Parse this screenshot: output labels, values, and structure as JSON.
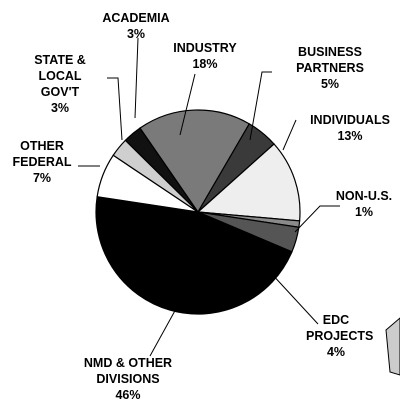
{
  "chart_data": {
    "type": "pie",
    "categories": [
      "ACADEMIA",
      "INDUSTRY",
      "BUSINESS PARTNERS",
      "INDIVIDUALS",
      "NON-U.S.",
      "EDC PROJECTS",
      "NMD & OTHER DIVISIONS",
      "OTHER FEDERAL",
      "STATE & LOCAL GOV'T"
    ],
    "values": [
      3,
      18,
      5,
      13,
      1,
      4,
      46,
      7,
      3
    ],
    "value_labels": [
      "3%",
      "18%",
      "5%",
      "13%",
      "1%",
      "4%",
      "46%",
      "7%",
      "3%"
    ],
    "colors": [
      "#111111",
      "#7a7a7a",
      "#3a3a3a",
      "#eeeeee",
      "#8a8a8a",
      "#555555",
      "#000000",
      "#ffffff",
      "#cfcfcf"
    ]
  }
}
